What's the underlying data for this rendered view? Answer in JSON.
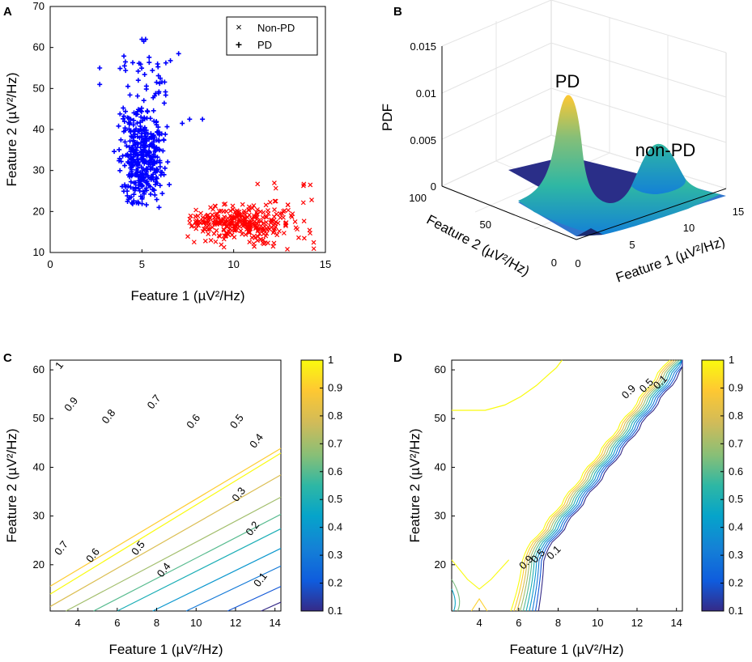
{
  "panels": {
    "A": "A",
    "B": "B",
    "C": "C",
    "D": "D"
  },
  "colors": {
    "pd": "#0000ff",
    "non_pd": "#ff0000"
  },
  "chart_data": [
    {
      "id": "A",
      "type": "scatter",
      "title": "",
      "xlabel": "Feature 1 (µV²/Hz)",
      "ylabel": "Feature 2 (µV²/Hz)",
      "xlim": [
        0,
        15
      ],
      "ylim": [
        10,
        70
      ],
      "xticks": [
        0,
        5,
        10,
        15
      ],
      "yticks": [
        10,
        20,
        30,
        40,
        50,
        60,
        70
      ],
      "legend": {
        "position": "top-right",
        "entries": [
          "Non-PD",
          "PD"
        ]
      },
      "series": [
        {
          "name": "Non-PD",
          "marker": "x",
          "color": "#ff0000",
          "cluster": {
            "x_range": [
              7.5,
              14.5
            ],
            "y_range": [
              10,
              28
            ],
            "center": [
              10.5,
              17
            ]
          }
        },
        {
          "name": "PD",
          "marker": "+",
          "color": "#0000ff",
          "cluster": {
            "x_range": [
              2.6,
              8.5
            ],
            "y_range": [
              21,
              62
            ],
            "center": [
              5,
              33
            ]
          }
        }
      ]
    },
    {
      "id": "B",
      "type": "surface",
      "xlabel": "Feature 1 (µV²/Hz)",
      "ylabel": "Feature 2 (µV²/Hz)",
      "zlabel": "PDF",
      "xticks": [
        0,
        5,
        10,
        15
      ],
      "yticks": [
        0,
        50,
        100
      ],
      "zticks": [
        "0",
        "0.005",
        "0.01",
        "0.015"
      ],
      "zlim": [
        0,
        0.015
      ],
      "annotations": [
        "PD",
        "non-PD"
      ],
      "peaks": [
        {
          "name": "PD",
          "feature1": 5,
          "feature2": 35,
          "pdf": 0.0097
        },
        {
          "name": "non-PD",
          "feature1": 10.5,
          "feature2": 17,
          "pdf": 0.0042
        }
      ]
    },
    {
      "id": "C",
      "type": "contour",
      "xlabel": "Feature 1 (µV²/Hz)",
      "ylabel": "Feature 2 (µV²/Hz)",
      "xlim": [
        2.6,
        14.3
      ],
      "ylim": [
        10.5,
        62
      ],
      "xticks": [
        4,
        6,
        8,
        10,
        12,
        14
      ],
      "yticks": [
        20,
        30,
        40,
        50,
        60
      ],
      "levels": [
        1,
        0.9,
        0.8,
        0.7,
        0.6,
        0.5,
        0.4,
        0.3,
        0.2,
        0.1
      ],
      "contour_labels": [
        "1",
        "0.9",
        "0.8",
        "0.7",
        "0.6",
        "0.5",
        "0.4",
        "0.3",
        "0.2",
        "0.1",
        "0.7",
        "0.6",
        "0.5",
        "0.4"
      ],
      "colorbar": {
        "ticks": [
          "1",
          "0.9",
          "0.8",
          "0.7",
          "0.6",
          "0.5",
          "0.4",
          "0.3",
          "0.2",
          "0.1"
        ]
      }
    },
    {
      "id": "D",
      "type": "contour",
      "xlabel": "Feature 1 (µV²/Hz)",
      "ylabel": "Feature 2 (µV²/Hz)",
      "xlim": [
        2.6,
        14.3
      ],
      "ylim": [
        10.5,
        62
      ],
      "xticks": [
        4,
        6,
        8,
        10,
        12,
        14
      ],
      "yticks": [
        20,
        30,
        40,
        50,
        60
      ],
      "levels": [
        1,
        0.9,
        0.8,
        0.7,
        0.6,
        0.5,
        0.4,
        0.3,
        0.2,
        0.1
      ],
      "contour_labels": [
        "0.9",
        "0.5",
        "0.1",
        "0.9",
        "0.5",
        "0.1"
      ],
      "colorbar": {
        "ticks": [
          "1",
          "0.9",
          "0.8",
          "0.7",
          "0.6",
          "0.5",
          "0.4",
          "0.3",
          "0.2",
          "0.1"
        ]
      }
    }
  ]
}
